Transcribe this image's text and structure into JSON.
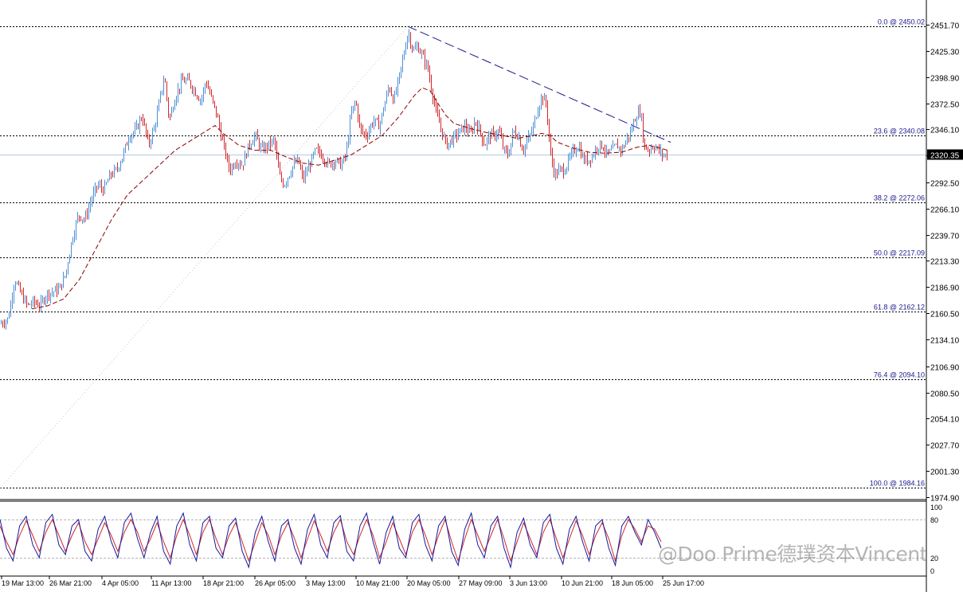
{
  "chart_data": {
    "type": "candlestick",
    "price_axis": {
      "min": 1974.9,
      "max": 2451.7,
      "ticks": [
        "2451.70",
        "2425.30",
        "2398.90",
        "2372.50",
        "2346.10",
        "2319.70",
        "2292.50",
        "2266.10",
        "2239.70",
        "2213.30",
        "2186.90",
        "2160.50",
        "2134.10",
        "2106.90",
        "2080.50",
        "2054.10",
        "2027.70",
        "2001.30",
        "1974.90"
      ]
    },
    "current_price": {
      "value": 2320.35,
      "label": "2320.35"
    },
    "fibonacci_levels": [
      {
        "price": 2450.02,
        "label": "0.0 @ 2450.02"
      },
      {
        "price": 2340.08,
        "label": "23.6 @ 2340.08"
      },
      {
        "price": 2272.06,
        "label": "38.2 @ 2272.06"
      },
      {
        "price": 2217.09,
        "label": "50.0 @ 2217.09"
      },
      {
        "price": 2162.12,
        "label": "61.8 @ 2162.12"
      },
      {
        "price": 2094.1,
        "label": "76.4 @ 2094.10"
      },
      {
        "price": 1984.16,
        "label": "100.0 @ 1984.16"
      }
    ],
    "time_labels": [
      "19 Mar 13:00",
      "26 Mar 21:00",
      "4 Apr 05:00",
      "11 Apr 13:00",
      "18 Apr 21:00",
      "26 Apr 05:00",
      "3 May 13:00",
      "10 May 21:00",
      "20 May 05:00",
      "27 May 09:00",
      "3 Jun 13:00",
      "10 Jun 21:00",
      "18 Jun 05:00",
      "25 Jun 17:00"
    ],
    "close_path": [
      [
        0,
        2150
      ],
      [
        10,
        2155
      ],
      [
        18,
        2195
      ],
      [
        26,
        2180
      ],
      [
        34,
        2168
      ],
      [
        42,
        2172
      ],
      [
        50,
        2168
      ],
      [
        58,
        2180
      ],
      [
        66,
        2182
      ],
      [
        74,
        2185
      ],
      [
        82,
        2200
      ],
      [
        90,
        2235
      ],
      [
        98,
        2260
      ],
      [
        106,
        2255
      ],
      [
        114,
        2275
      ],
      [
        122,
        2290
      ],
      [
        130,
        2285
      ],
      [
        138,
        2300
      ],
      [
        146,
        2305
      ],
      [
        154,
        2320
      ],
      [
        162,
        2340
      ],
      [
        170,
        2345
      ],
      [
        178,
        2360
      ],
      [
        186,
        2330
      ],
      [
        194,
        2350
      ],
      [
        200,
        2375
      ],
      [
        206,
        2400
      ],
      [
        212,
        2355
      ],
      [
        220,
        2380
      ],
      [
        228,
        2395
      ],
      [
        236,
        2395
      ],
      [
        244,
        2385
      ],
      [
        252,
        2375
      ],
      [
        258,
        2395
      ],
      [
        264,
        2380
      ],
      [
        272,
        2360
      ],
      [
        280,
        2330
      ],
      [
        288,
        2305
      ],
      [
        296,
        2315
      ],
      [
        304,
        2310
      ],
      [
        312,
        2330
      ],
      [
        320,
        2340
      ],
      [
        328,
        2325
      ],
      [
        336,
        2330
      ],
      [
        344,
        2335
      ],
      [
        350,
        2300
      ],
      [
        356,
        2290
      ],
      [
        362,
        2300
      ],
      [
        368,
        2310
      ],
      [
        374,
        2315
      ],
      [
        380,
        2295
      ],
      [
        388,
        2310
      ],
      [
        396,
        2325
      ],
      [
        404,
        2320
      ],
      [
        412,
        2310
      ],
      [
        420,
        2315
      ],
      [
        428,
        2310
      ],
      [
        434,
        2320
      ],
      [
        440,
        2360
      ],
      [
        446,
        2375
      ],
      [
        452,
        2345
      ],
      [
        460,
        2340
      ],
      [
        468,
        2355
      ],
      [
        476,
        2350
      ],
      [
        482,
        2370
      ],
      [
        488,
        2390
      ],
      [
        494,
        2375
      ],
      [
        500,
        2395
      ],
      [
        506,
        2420
      ],
      [
        512,
        2445
      ],
      [
        518,
        2425
      ],
      [
        524,
        2430
      ],
      [
        530,
        2420
      ],
      [
        536,
        2410
      ],
      [
        542,
        2385
      ],
      [
        548,
        2360
      ],
      [
        554,
        2345
      ],
      [
        560,
        2330
      ],
      [
        566,
        2335
      ],
      [
        572,
        2340
      ],
      [
        578,
        2345
      ],
      [
        584,
        2350
      ],
      [
        590,
        2340
      ],
      [
        596,
        2355
      ],
      [
        602,
        2345
      ],
      [
        608,
        2330
      ],
      [
        614,
        2340
      ],
      [
        620,
        2340
      ],
      [
        626,
        2345
      ],
      [
        632,
        2325
      ],
      [
        638,
        2320
      ],
      [
        644,
        2345
      ],
      [
        650,
        2340
      ],
      [
        656,
        2325
      ],
      [
        662,
        2335
      ],
      [
        668,
        2345
      ],
      [
        674,
        2365
      ],
      [
        680,
        2380
      ],
      [
        686,
        2370
      ],
      [
        690,
        2325
      ],
      [
        696,
        2300
      ],
      [
        702,
        2305
      ],
      [
        708,
        2305
      ],
      [
        714,
        2315
      ],
      [
        720,
        2325
      ],
      [
        726,
        2330
      ],
      [
        732,
        2315
      ],
      [
        738,
        2315
      ],
      [
        744,
        2320
      ],
      [
        750,
        2330
      ],
      [
        756,
        2330
      ],
      [
        762,
        2320
      ],
      [
        768,
        2325
      ],
      [
        774,
        2330
      ],
      [
        780,
        2325
      ],
      [
        786,
        2335
      ],
      [
        792,
        2345
      ],
      [
        798,
        2360
      ],
      [
        804,
        2365
      ],
      [
        808,
        2330
      ],
      [
        814,
        2325
      ],
      [
        820,
        2330
      ],
      [
        826,
        2325
      ],
      [
        832,
        2320
      ],
      [
        838,
        2320
      ]
    ],
    "ma_path": [
      [
        40,
        2165
      ],
      [
        60,
        2168
      ],
      [
        80,
        2175
      ],
      [
        100,
        2195
      ],
      [
        120,
        2225
      ],
      [
        140,
        2255
      ],
      [
        160,
        2280
      ],
      [
        180,
        2295
      ],
      [
        200,
        2310
      ],
      [
        220,
        2325
      ],
      [
        240,
        2335
      ],
      [
        260,
        2345
      ],
      [
        270,
        2350
      ],
      [
        280,
        2342
      ],
      [
        300,
        2330
      ],
      [
        320,
        2325
      ],
      [
        340,
        2325
      ],
      [
        360,
        2318
      ],
      [
        380,
        2312
      ],
      [
        400,
        2310
      ],
      [
        420,
        2315
      ],
      [
        440,
        2320
      ],
      [
        460,
        2330
      ],
      [
        480,
        2340
      ],
      [
        500,
        2358
      ],
      [
        520,
        2380
      ],
      [
        530,
        2388
      ],
      [
        540,
        2385
      ],
      [
        550,
        2372
      ],
      [
        560,
        2360
      ],
      [
        570,
        2352
      ],
      [
        590,
        2347
      ],
      [
        610,
        2343
      ],
      [
        630,
        2340
      ],
      [
        650,
        2337
      ],
      [
        670,
        2340
      ],
      [
        680,
        2342
      ],
      [
        690,
        2340
      ],
      [
        700,
        2333
      ],
      [
        720,
        2327
      ],
      [
        740,
        2323
      ],
      [
        760,
        2322
      ],
      [
        780,
        2323
      ],
      [
        800,
        2328
      ],
      [
        815,
        2330
      ],
      [
        830,
        2327
      ],
      [
        838,
        2325
      ]
    ],
    "trendline": {
      "from": [
        512,
        2450
      ],
      "to": [
        842,
        2333
      ]
    },
    "fib_connector": {
      "from": [
        0,
        1984
      ],
      "to": [
        512,
        2450
      ]
    },
    "stochastic": {
      "ticks": [
        {
          "value": 100,
          "label": "100"
        },
        {
          "value": 80,
          "label": "80"
        },
        {
          "value": 20,
          "label": "20"
        },
        {
          "value": 0,
          "label": "0"
        }
      ],
      "k": [
        80,
        35,
        15,
        70,
        85,
        40,
        20,
        75,
        88,
        40,
        25,
        70,
        80,
        30,
        15,
        65,
        85,
        45,
        20,
        75,
        90,
        50,
        20,
        60,
        85,
        30,
        10,
        70,
        90,
        40,
        15,
        75,
        85,
        35,
        20,
        70,
        82,
        30,
        5,
        60,
        85,
        45,
        15,
        70,
        80,
        35,
        10,
        65,
        88,
        40,
        20,
        75,
        86,
        30,
        15,
        70,
        90,
        45,
        10,
        60,
        85,
        35,
        20,
        75,
        88,
        40,
        15,
        70,
        85,
        30,
        8,
        65,
        90,
        40,
        20,
        70,
        85,
        35,
        5,
        60,
        82,
        40,
        20,
        75,
        88,
        35,
        10,
        65,
        85,
        45,
        15,
        70,
        80,
        35,
        8,
        70,
        85,
        60,
        40,
        80,
        60,
        35
      ],
      "d": [
        70,
        45,
        25,
        55,
        78,
        55,
        30,
        60,
        80,
        55,
        30,
        55,
        75,
        45,
        25,
        50,
        75,
        55,
        30,
        60,
        80,
        60,
        30,
        50,
        75,
        45,
        20,
        55,
        80,
        55,
        25,
        60,
        80,
        50,
        25,
        55,
        75,
        45,
        15,
        45,
        75,
        55,
        25,
        55,
        75,
        50,
        20,
        50,
        78,
        55,
        30,
        60,
        80,
        45,
        25,
        55,
        80,
        55,
        20,
        45,
        75,
        50,
        25,
        60,
        80,
        55,
        25,
        55,
        80,
        45,
        15,
        50,
        80,
        55,
        30,
        55,
        80,
        50,
        15,
        45,
        75,
        50,
        25,
        60,
        80,
        50,
        20,
        50,
        78,
        55,
        25,
        55,
        75,
        50,
        15,
        55,
        80,
        65,
        45,
        70,
        65,
        45
      ]
    }
  },
  "watermark": "@Doo Prime德璞资本Vincent"
}
